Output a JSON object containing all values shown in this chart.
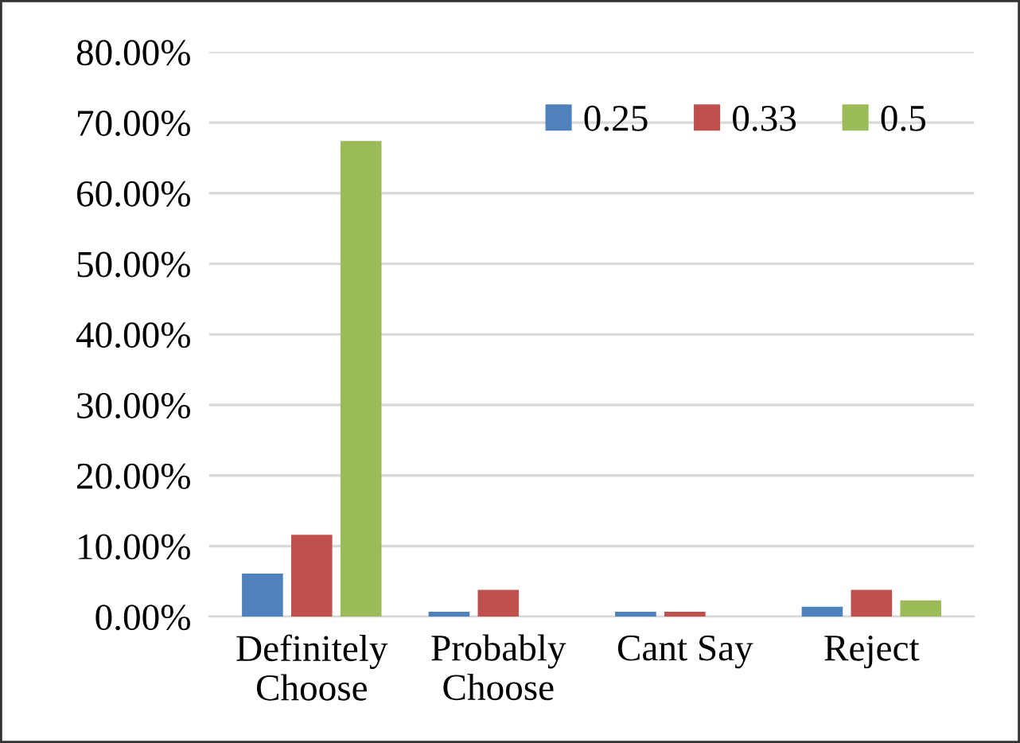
{
  "chart_data": {
    "type": "bar",
    "categories": [
      "Definitely\nChoose",
      "Probably\nChoose",
      "Cant Say",
      "Reject"
    ],
    "series": [
      {
        "name": "0.25",
        "color": "#4f81bd",
        "values": [
          6.1,
          0.7,
          0.7,
          1.4
        ]
      },
      {
        "name": "0.33",
        "color": "#c0504d",
        "values": [
          11.6,
          3.8,
          0.7,
          3.8
        ]
      },
      {
        "name": "0.5",
        "color": "#9bbb59",
        "values": [
          67.4,
          0,
          0,
          2.3
        ]
      }
    ],
    "ylim": [
      0,
      80
    ],
    "yticks": [
      {
        "value": 0,
        "label": "0.00%"
      },
      {
        "value": 10,
        "label": "10.00%"
      },
      {
        "value": 20,
        "label": "20.00%"
      },
      {
        "value": 30,
        "label": "30.00%"
      },
      {
        "value": 40,
        "label": "40.00%"
      },
      {
        "value": 50,
        "label": "50.00%"
      },
      {
        "value": 60,
        "label": "60.00%"
      },
      {
        "value": 70,
        "label": "70.00%"
      },
      {
        "value": 80,
        "label": "80.00%"
      }
    ],
    "grid": "y",
    "legend": "top right"
  }
}
